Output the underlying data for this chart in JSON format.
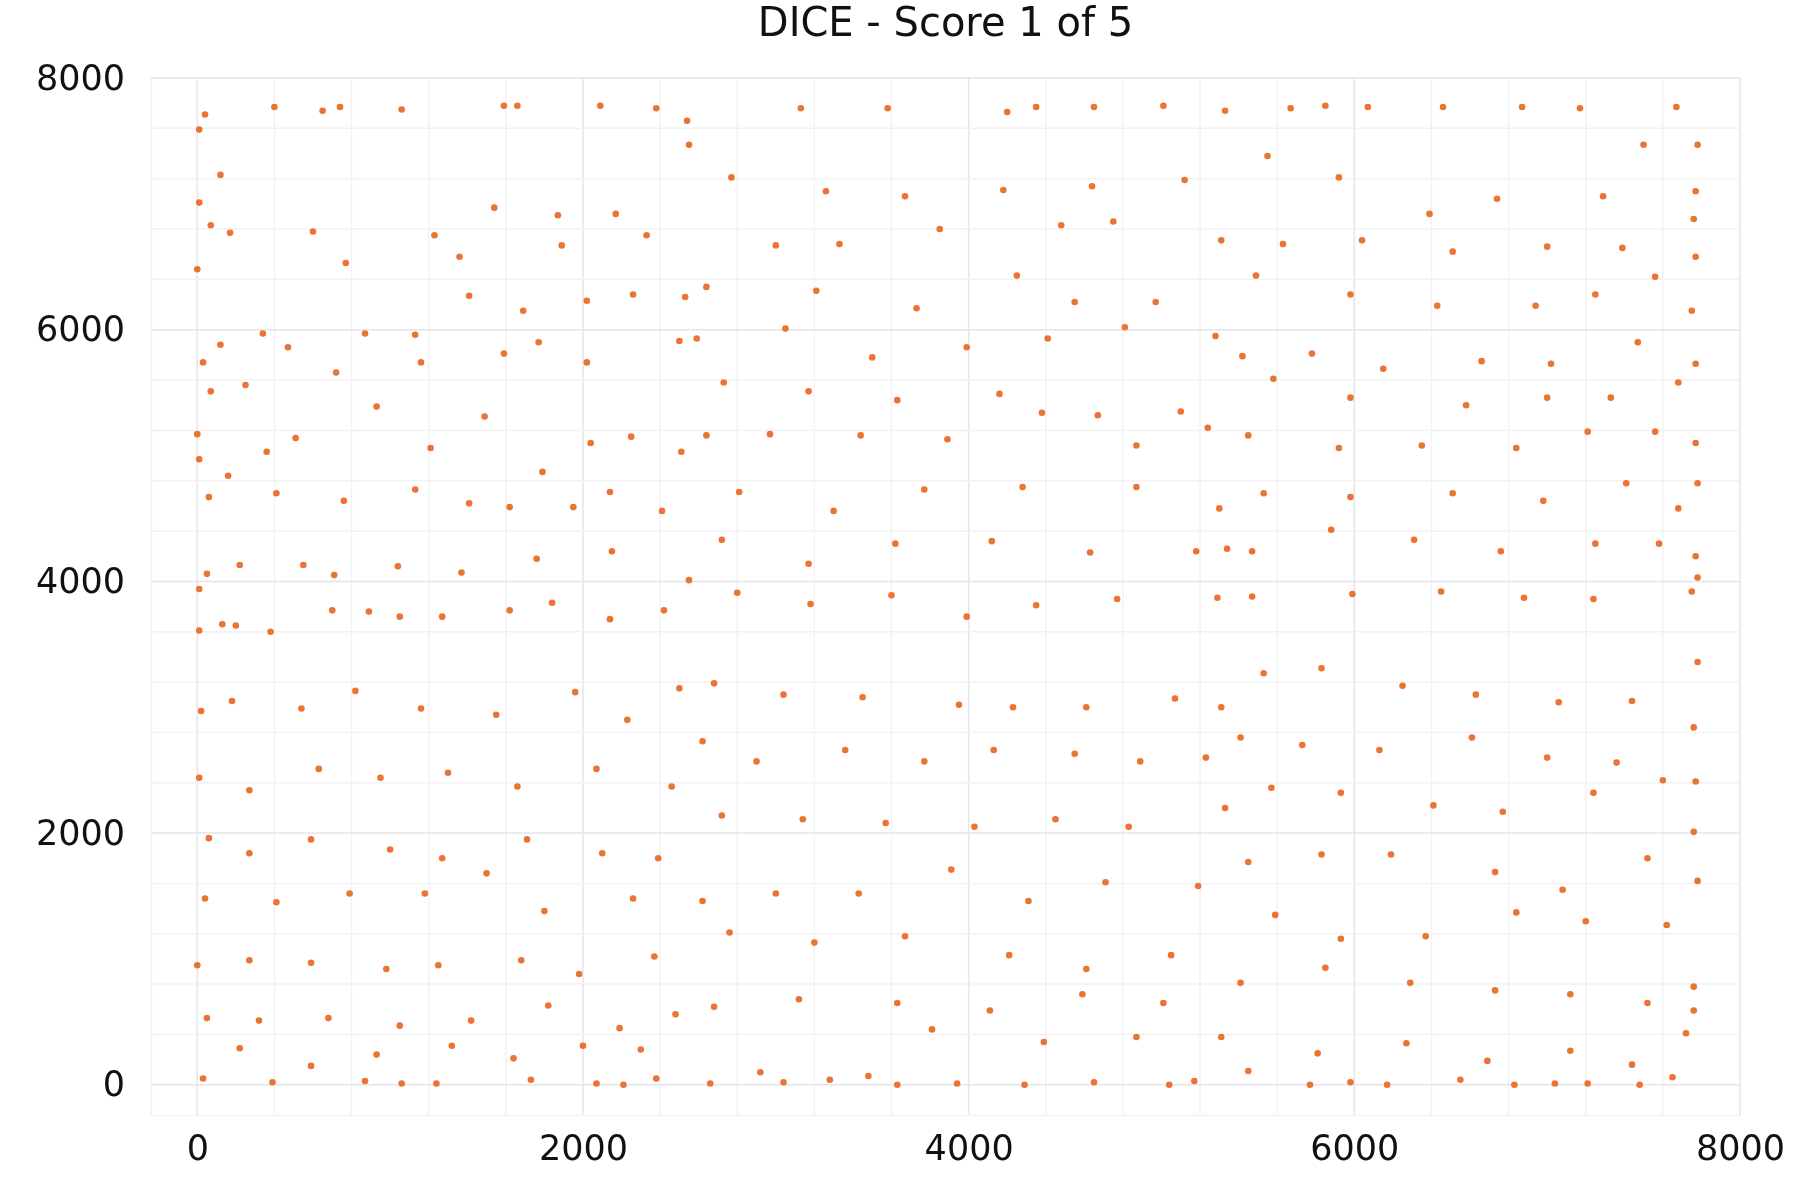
{
  "chart_data": {
    "type": "scatter",
    "title": "DICE - Score 1 of 5",
    "color": "#ea7434",
    "marker": "circle",
    "grid": true,
    "xlim": [
      -240,
      8000
    ],
    "ylim": [
      -240,
      8000
    ],
    "xticks": [
      0,
      {
        "value": 400,
        "label": null
      },
      {
        "value": 800,
        "label": null
      },
      {
        "value": 1200,
        "label": null
      },
      {
        "value": 1600,
        "label": null
      },
      2000,
      {
        "value": 2400,
        "label": null
      },
      {
        "value": 2800,
        "label": null
      },
      {
        "value": 3200,
        "label": null
      },
      {
        "value": 3600,
        "label": null
      },
      4000,
      {
        "value": 4400,
        "label": null
      },
      {
        "value": 4800,
        "label": null
      },
      {
        "value": 5200,
        "label": null
      },
      {
        "value": 5600,
        "label": null
      },
      6000,
      {
        "value": 6400,
        "label": null
      },
      {
        "value": 6800,
        "label": null
      },
      {
        "value": 7200,
        "label": null
      },
      {
        "value": 7600,
        "label": null
      },
      8000
    ],
    "yticks": [
      0,
      {
        "value": 400,
        "label": null
      },
      {
        "value": 800,
        "label": null
      },
      {
        "value": 1200,
        "label": null
      },
      {
        "value": 1600,
        "label": null
      },
      2000,
      {
        "value": 2400,
        "label": null
      },
      {
        "value": 2800,
        "label": null
      },
      {
        "value": 3200,
        "label": null
      },
      {
        "value": 3600,
        "label": null
      },
      4000,
      {
        "value": 4400,
        "label": null
      },
      {
        "value": 4800,
        "label": null
      },
      {
        "value": 5200,
        "label": null
      },
      {
        "value": 5600,
        "label": null
      },
      6000,
      {
        "value": 6400,
        "label": null
      },
      {
        "value": 6800,
        "label": null
      },
      {
        "value": 7200,
        "label": null
      },
      {
        "value": 7600,
        "label": null
      },
      8000
    ],
    "x": [
      40,
      10,
      10,
      70,
      0,
      120,
      400,
      740,
      1060,
      650,
      1590,
      1660,
      2090,
      2380,
      2540,
      2550,
      1870,
      1890,
      1360,
      2330,
      2170,
      1540,
      1230,
      770,
      600,
      170,
      340,
      30,
      120,
      470,
      870,
      1130,
      1410,
      1690,
      2020,
      2260,
      2530,
      2500,
      2020,
      1770,
      1590,
      1160,
      720,
      250,
      70,
      0,
      10,
      160,
      360,
      510,
      930,
      1210,
      1490,
      1790,
      2040,
      2250,
      2510,
      2410,
      2140,
      1950,
      1620,
      1410,
      1130,
      760,
      410,
      60,
      50,
      10,
      220,
      550,
      710,
      1040,
      1370,
      1760,
      2150,
      2550,
      3130,
      3580,
      4200,
      4350,
      4650,
      5010,
      5330,
      2770,
      3260,
      3670,
      4180,
      4640,
      5120,
      3000,
      3330,
      3850,
      4480,
      4750,
      5310,
      2640,
      3210,
      3730,
      4250,
      4550,
      4970,
      2590,
      3050,
      3500,
      3990,
      4410,
      4810,
      5280,
      2730,
      3170,
      3630,
      4160,
      4670,
      5100,
      2640,
      2970,
      3440,
      3890,
      4380,
      4870,
      5240,
      2810,
      3300,
      3770,
      4280,
      4870,
      5300,
      2720,
      3170,
      3620,
      4120,
      4630,
      5180,
      5340,
      5670,
      5850,
      6070,
      6460,
      6870,
      7170,
      7670,
      7780,
      7770,
      7760,
      7770,
      7750,
      7770,
      7770,
      7780,
      7770,
      7780,
      5550,
      5920,
      6390,
      6740,
      7290,
      7500,
      5630,
      6040,
      6510,
      7000,
      7390,
      5490,
      5980,
      6430,
      6940,
      7250,
      7560,
      5420,
      5780,
      6150,
      6660,
      7020,
      7470,
      5580,
      5980,
      6580,
      7000,
      7330,
      7680,
      5450,
      5920,
      6350,
      6840,
      7210,
      7560,
      5530,
      5980,
      6510,
      6980,
      7410,
      7680,
      5470,
      5880,
      6310,
      6760,
      7250,
      7580,
      10,
      130,
      200,
      380,
      700,
      890,
      1050,
      1270,
      1620,
      1840,
      2140,
      2420,
      20,
      180,
      540,
      820,
      1160,
      1550,
      1960,
      2230,
      2500,
      10,
      270,
      630,
      950,
      1300,
      1660,
      2070,
      2460,
      60,
      270,
      590,
      1000,
      1270,
      1710,
      2100,
      2390,
      40,
      410,
      790,
      1180,
      1500,
      1800,
      2260,
      0,
      270,
      590,
      980,
      1250,
      1680,
      1980,
      2370,
      50,
      320,
      680,
      1050,
      1420,
      1820,
      2190,
      2480,
      30,
      390,
      870,
      1060,
      1240,
      1730,
      2070,
      2210,
      2380,
      220,
      590,
      930,
      1320,
      1640,
      2000,
      2300,
      2800,
      3180,
      3600,
      3990,
      4350,
      4770,
      5290,
      2680,
      3040,
      3450,
      3950,
      4230,
      4610,
      5070,
      5310,
      2620,
      2900,
      3360,
      3770,
      4130,
      4550,
      4890,
      5230,
      2720,
      3140,
      3570,
      4030,
      4450,
      4830,
      5330,
      2620,
      3000,
      3430,
      3910,
      4310,
      4710,
      5190,
      2760,
      3200,
      3670,
      4210,
      4610,
      5050,
      2680,
      3120,
      3630,
      4110,
      4590,
      5010,
      2660,
      3040,
      3280,
      3630,
      3940,
      4290,
      4650,
      5040,
      5170,
      2920,
      3480,
      3810,
      4390,
      4870,
      5310,
      5470,
      5990,
      6450,
      6880,
      7240,
      7750,
      7780,
      7760,
      7770,
      7760,
      7780,
      7760,
      7760,
      7720,
      7650,
      7480,
      7210,
      7040,
      6830,
      6550,
      6170,
      5980,
      5770,
      5530,
      5830,
      6250,
      6630,
      7060,
      7440,
      5410,
      5730,
      6130,
      6610,
      7000,
      7360,
      5570,
      5930,
      6410,
      6770,
      7240,
      7600,
      5450,
      5830,
      6190,
      6730,
      7080,
      7520,
      5590,
      5930,
      6370,
      6840,
      7200,
      7620,
      5410,
      5850,
      6290,
      6730,
      7120,
      7520,
      5450,
      5810,
      6270,
      6690,
      7120,
      7440
    ],
    "values": [
      7710,
      7590,
      7010,
      6830,
      6480,
      7230,
      7770,
      7770,
      7750,
      7740,
      7780,
      7780,
      7780,
      7760,
      7660,
      7470,
      6910,
      6670,
      6580,
      6750,
      6920,
      6970,
      6750,
      6530,
      6780,
      6770,
      5970,
      5740,
      5880,
      5860,
      5970,
      5960,
      6270,
      6150,
      6230,
      6280,
      6260,
      5910,
      5740,
      5900,
      5810,
      5740,
      5660,
      5560,
      5510,
      5170,
      4970,
      4840,
      5030,
      5140,
      5390,
      5060,
      5310,
      4870,
      5100,
      5150,
      5030,
      4560,
      4710,
      4590,
      4590,
      4620,
      4730,
      4640,
      4700,
      4670,
      4060,
      3940,
      4130,
      4130,
      4050,
      4120,
      4070,
      4180,
      4240,
      4010,
      7760,
      7760,
      7730,
      7770,
      7770,
      7780,
      7740,
      7210,
      7100,
      7060,
      7110,
      7140,
      7190,
      6670,
      6680,
      6800,
      6830,
      6860,
      6710,
      6340,
      6310,
      6170,
      6430,
      6220,
      6220,
      5930,
      6010,
      5780,
      5860,
      5930,
      6020,
      5950,
      5580,
      5510,
      5440,
      5490,
      5320,
      5350,
      5160,
      5170,
      5160,
      5130,
      5340,
      5080,
      5220,
      4710,
      4560,
      4730,
      4750,
      4750,
      4580,
      4330,
      4140,
      4300,
      4320,
      4230,
      4240,
      4260,
      7760,
      7780,
      7770,
      7770,
      7770,
      7760,
      7770,
      7470,
      7100,
      6880,
      6580,
      6150,
      5730,
      5100,
      4780,
      4200,
      4030,
      7380,
      7210,
      6920,
      7040,
      7060,
      7470,
      6680,
      6710,
      6620,
      6660,
      6650,
      6430,
      6280,
      6190,
      6190,
      6280,
      6420,
      5790,
      5810,
      5690,
      5750,
      5730,
      5900,
      5610,
      5460,
      5400,
      5460,
      5460,
      5580,
      5160,
      5060,
      5080,
      5060,
      5190,
      5190,
      4700,
      4670,
      4700,
      4640,
      4780,
      4580,
      4240,
      4410,
      4330,
      4240,
      4300,
      4300,
      3610,
      3660,
      3650,
      3600,
      3770,
      3760,
      3720,
      3720,
      3770,
      3830,
      3700,
      3770,
      2970,
      3050,
      2990,
      3130,
      2990,
      2940,
      3120,
      2900,
      3150,
      2440,
      2340,
      2510,
      2440,
      2480,
      2370,
      2510,
      2370,
      1960,
      1840,
      1950,
      1870,
      1800,
      1950,
      1840,
      1800,
      1480,
      1450,
      1520,
      1520,
      1680,
      1380,
      1480,
      950,
      990,
      970,
      920,
      950,
      990,
      880,
      1020,
      530,
      510,
      530,
      470,
      510,
      630,
      450,
      560,
      50,
      20,
      30,
      10,
      10,
      40,
      10,
      0,
      50,
      290,
      150,
      240,
      310,
      210,
      310,
      280,
      3910,
      3820,
      3890,
      3720,
      3810,
      3860,
      3870,
      3190,
      3100,
      3080,
      3020,
      3000,
      3000,
      3070,
      3000,
      2730,
      2570,
      2660,
      2570,
      2660,
      2630,
      2570,
      2600,
      2140,
      2110,
      2080,
      2050,
      2110,
      2050,
      2200,
      1460,
      1520,
      1520,
      1710,
      1460,
      1610,
      1580,
      1210,
      1130,
      1180,
      1030,
      920,
      1030,
      620,
      680,
      650,
      590,
      720,
      650,
      10,
      20,
      40,
      0,
      10,
      0,
      20,
      0,
      30,
      100,
      70,
      440,
      340,
      380,
      380,
      3880,
      3900,
      3920,
      3870,
      3860,
      3920,
      3360,
      2840,
      2410,
      2010,
      1620,
      780,
      590,
      410,
      60,
      0,
      10,
      10,
      0,
      40,
      0,
      20,
      0,
      3270,
      3310,
      3170,
      3100,
      3040,
      3050,
      2760,
      2700,
      2660,
      2760,
      2600,
      2560,
      2360,
      2320,
      2220,
      2170,
      2320,
      2420,
      1770,
      1830,
      1830,
      1690,
      1550,
      1800,
      1350,
      1160,
      1180,
      1370,
      1300,
      1270,
      810,
      930,
      810,
      750,
      720,
      650,
      110,
      250,
      330,
      190,
      270,
      160
    ]
  }
}
